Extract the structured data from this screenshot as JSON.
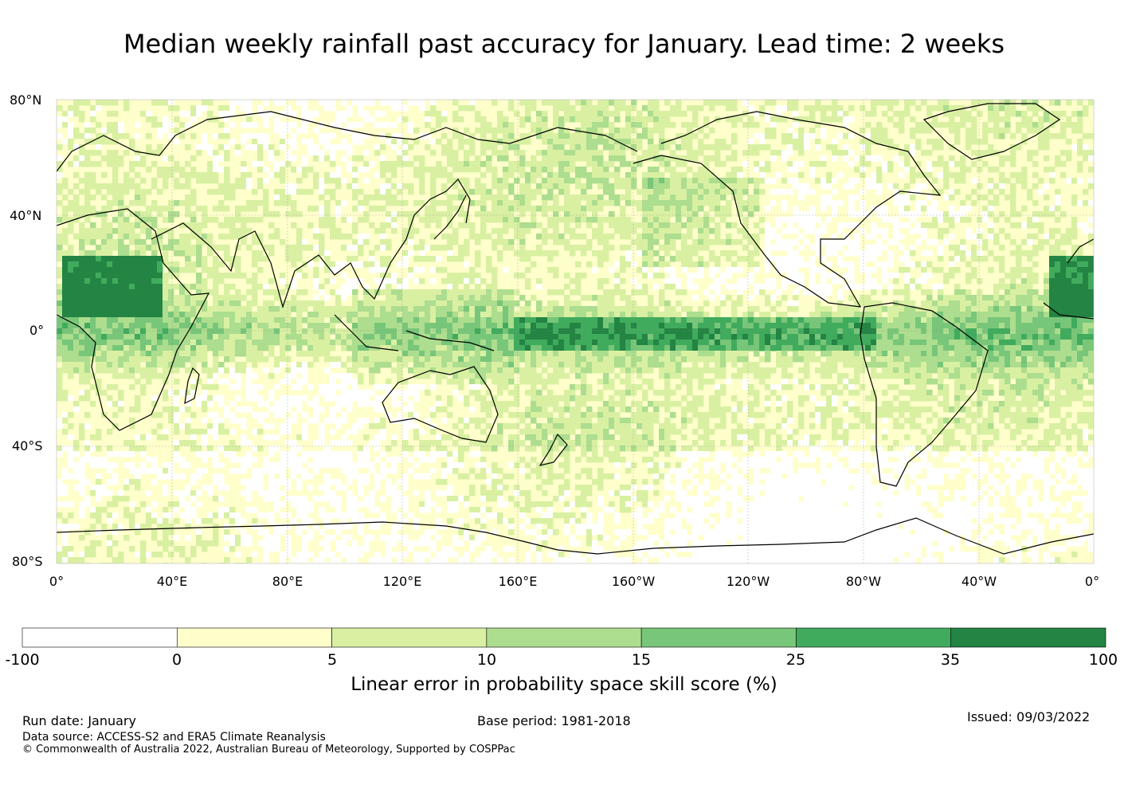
{
  "title": "Median weekly rainfall past accuracy for January. Lead time: 2 weeks",
  "lat_labels": [
    "80°N",
    "40°N",
    "0°",
    "40°S",
    "80°S"
  ],
  "lon_labels": [
    "0°",
    "40°E",
    "80°E",
    "120°E",
    "160°E",
    "160°W",
    "120°W",
    "80°W",
    "40°W",
    "0°"
  ],
  "colorbar": {
    "title": "Linear error in probability space skill score (%)",
    "ticks": [
      "-100",
      "0",
      "5",
      "10",
      "15",
      "25",
      "35",
      "100"
    ],
    "colors": [
      "#ffffff",
      "#ffffcc",
      "#d9f0a3",
      "#addd8e",
      "#78c679",
      "#41ab5d",
      "#238443"
    ]
  },
  "footer": {
    "run_date": "Run date: January",
    "base_period": "Base period: 1981-2018",
    "issued": "Issued: 09/03/2022",
    "data_source": "Data source: ACCESS-S2 and ERA5 Climate Reanalysis",
    "copyright": "© Commonwealth of Australia 2022, Australian Bureau of Meteorology, Supported by COSPPac"
  }
}
